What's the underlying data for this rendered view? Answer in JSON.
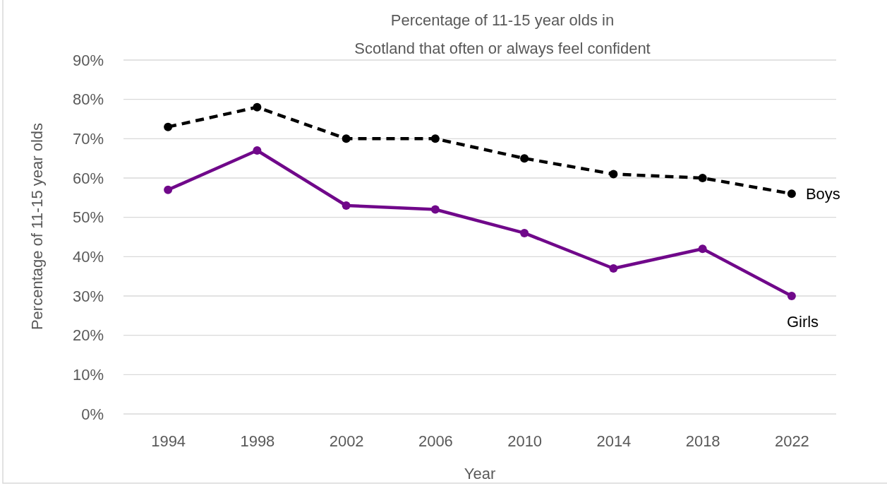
{
  "chart_data": {
    "type": "line",
    "title": "Percentage of 11-15 year olds in\nScotland that often or always feel confident",
    "xlabel": "Year",
    "ylabel": "Percentage of 11-15 year olds",
    "categories": [
      "1994",
      "1998",
      "2002",
      "2006",
      "2010",
      "2014",
      "2018",
      "2022"
    ],
    "series": [
      {
        "name": "Boys",
        "color": "#000000",
        "line_style": "dashed",
        "values": [
          73,
          78,
          70,
          70,
          65,
          61,
          60,
          56
        ]
      },
      {
        "name": "Girls",
        "color": "#70088a",
        "line_style": "solid",
        "values": [
          57,
          67,
          53,
          52,
          46,
          37,
          42,
          30
        ]
      }
    ],
    "ylim": [
      0,
      90
    ],
    "yticks": [
      {
        "value": 0,
        "label": "0%"
      },
      {
        "value": 10,
        "label": "10%"
      },
      {
        "value": 20,
        "label": "20%"
      },
      {
        "value": 30,
        "label": "30%"
      },
      {
        "value": 40,
        "label": "40%"
      },
      {
        "value": 50,
        "label": "50%"
      },
      {
        "value": 60,
        "label": "60%"
      },
      {
        "value": 70,
        "label": "70%"
      },
      {
        "value": 80,
        "label": "80%"
      },
      {
        "value": 90,
        "label": "90%"
      }
    ],
    "grid": "y",
    "legend": false,
    "marker": "circle"
  }
}
